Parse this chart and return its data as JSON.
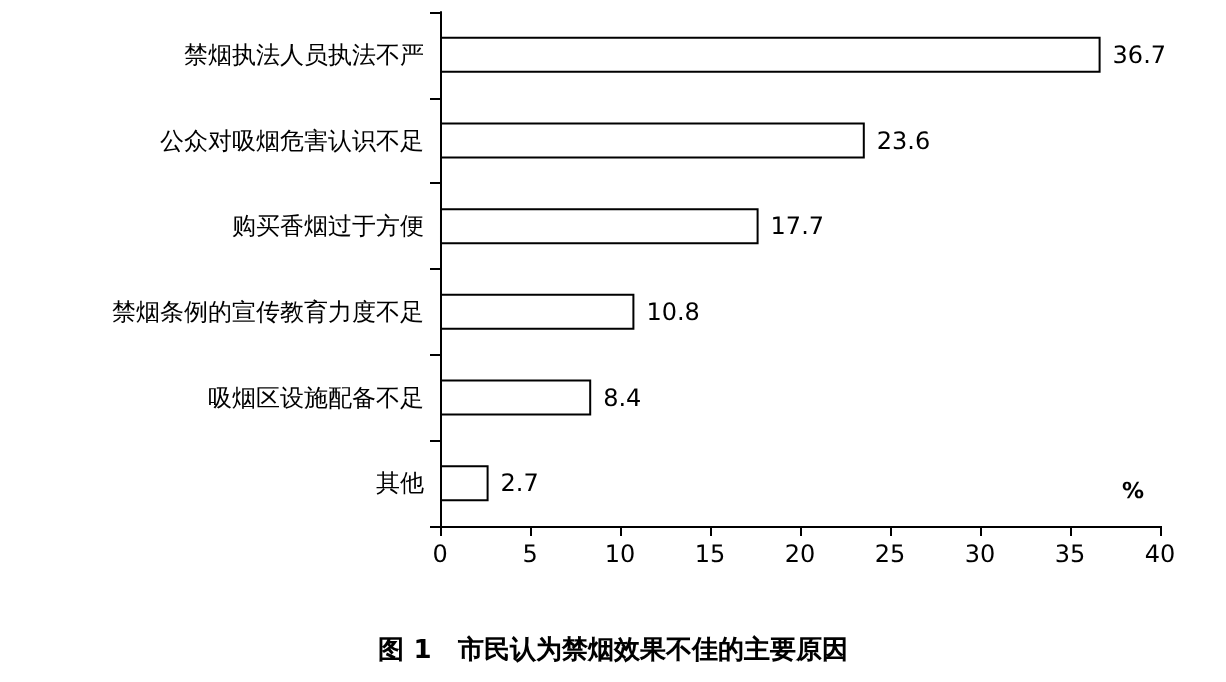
{
  "chart_data": {
    "type": "bar",
    "orientation": "horizontal",
    "title": "图 1　市民认为禁烟效果不佳的主要原因",
    "xlabel": "%",
    "categories": [
      "禁烟执法人员执法不严",
      "公众对吸烟危害认识不足",
      "购买香烟过于方便",
      "禁烟条例的宣传教育力度不足",
      "吸烟区设施配备不足",
      "其他"
    ],
    "values": [
      36.7,
      23.6,
      17.7,
      10.8,
      8.4,
      2.7
    ],
    "color": "#ffffff",
    "xlim": [
      0,
      40
    ],
    "xticks": [
      0,
      5,
      10,
      15,
      20,
      25,
      30,
      35,
      40
    ],
    "grid": false,
    "data_labels": true
  }
}
